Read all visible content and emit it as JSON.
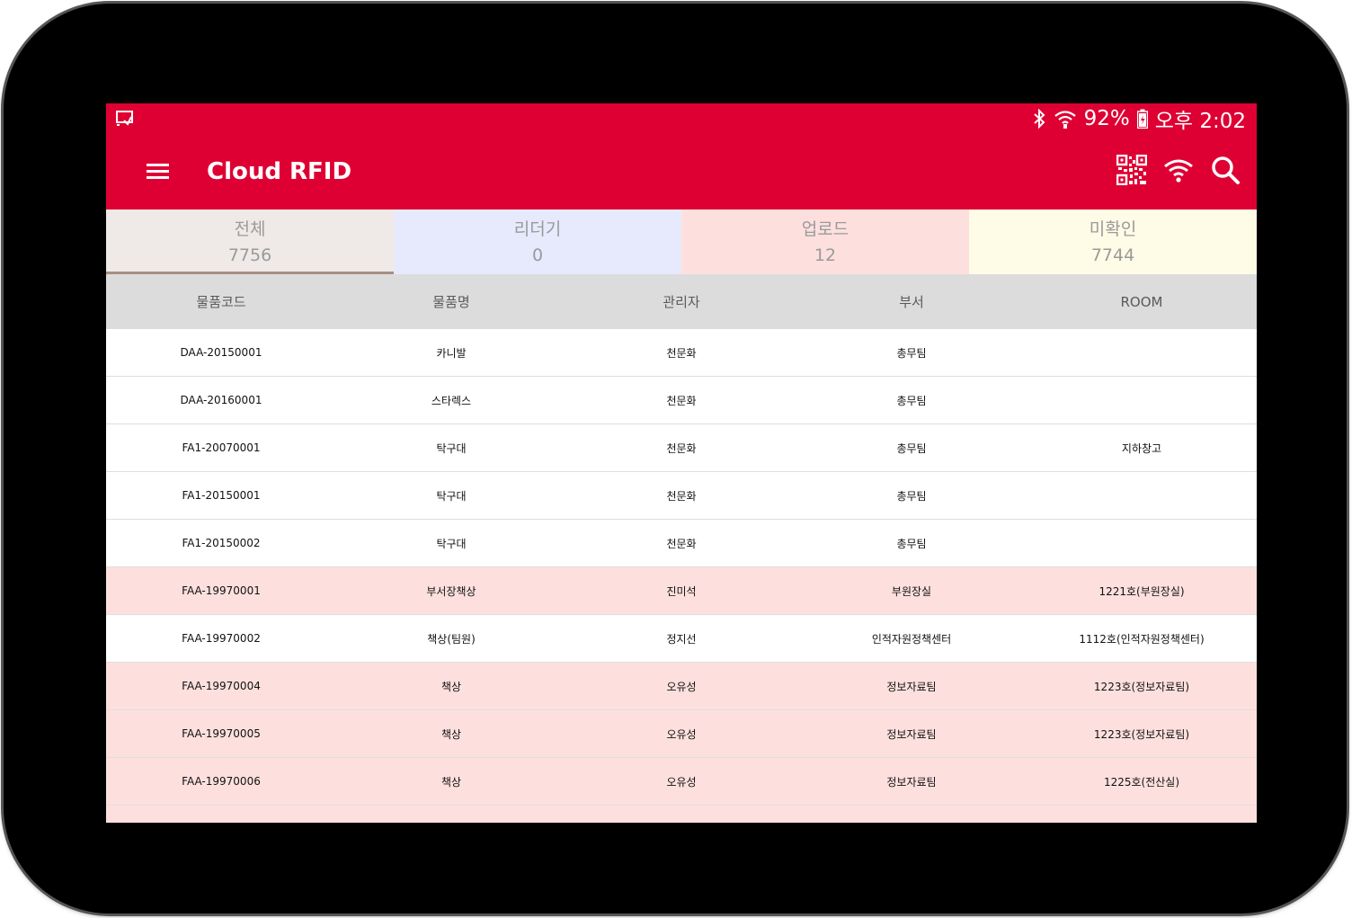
{
  "statusbar": {
    "battery": "92%",
    "time": "오후 2:02"
  },
  "appbar": {
    "title": "Cloud RFID"
  },
  "tabs": [
    {
      "label": "전체",
      "count": "7756",
      "bg": "#efeae7",
      "active": true
    },
    {
      "label": "리더기",
      "count": "0",
      "bg": "#e7eafd",
      "active": false
    },
    {
      "label": "업로드",
      "count": "12",
      "bg": "#fde0de",
      "active": false
    },
    {
      "label": "미확인",
      "count": "7744",
      "bg": "#fefbe6",
      "active": false
    }
  ],
  "table": {
    "headers": [
      "물품코드",
      "물품명",
      "관리자",
      "부서",
      "ROOM"
    ],
    "rows": [
      {
        "cells": [
          "DAA-20150001",
          "카니발",
          "천문화",
          "총무팀",
          ""
        ],
        "highlight": false
      },
      {
        "cells": [
          "DAA-20160001",
          "스타렉스",
          "천문화",
          "총무팀",
          ""
        ],
        "highlight": false
      },
      {
        "cells": [
          "FA1-20070001",
          "탁구대",
          "천문화",
          "총무팀",
          "지하창고"
        ],
        "highlight": false
      },
      {
        "cells": [
          "FA1-20150001",
          "탁구대",
          "천문화",
          "총무팀",
          ""
        ],
        "highlight": false
      },
      {
        "cells": [
          "FA1-20150002",
          "탁구대",
          "천문화",
          "총무팀",
          ""
        ],
        "highlight": false
      },
      {
        "cells": [
          "FAA-19970001",
          "부서장책상",
          "진미석",
          "부원장실",
          "1221호(부원장실)"
        ],
        "highlight": true
      },
      {
        "cells": [
          "FAA-19970002",
          "책상(팀원)",
          "정지선",
          "인적자원정책센터",
          "1112호(인적자원정책센터)"
        ],
        "highlight": false
      },
      {
        "cells": [
          "FAA-19970004",
          "책상",
          "오유성",
          "정보자료팀",
          "1223호(정보자료팀)"
        ],
        "highlight": true
      },
      {
        "cells": [
          "FAA-19970005",
          "책상",
          "오유성",
          "정보자료팀",
          "1223호(정보자료팀)"
        ],
        "highlight": true
      },
      {
        "cells": [
          "FAA-19970006",
          "책상",
          "오유성",
          "정보자료팀",
          "1225호(전산실)"
        ],
        "highlight": true
      },
      {
        "cells": [
          "",
          "",
          "",
          "",
          ""
        ],
        "highlight": true
      }
    ]
  },
  "colors": {
    "primary": "#de0033",
    "highlight_row": "#fde0de",
    "header_bg": "#dcdcdc"
  },
  "icons": [
    "cast-icon",
    "bluetooth-icon",
    "wifi-status-icon",
    "battery-icon",
    "menu-icon",
    "qr-code-icon",
    "wifi-icon",
    "search-icon"
  ]
}
